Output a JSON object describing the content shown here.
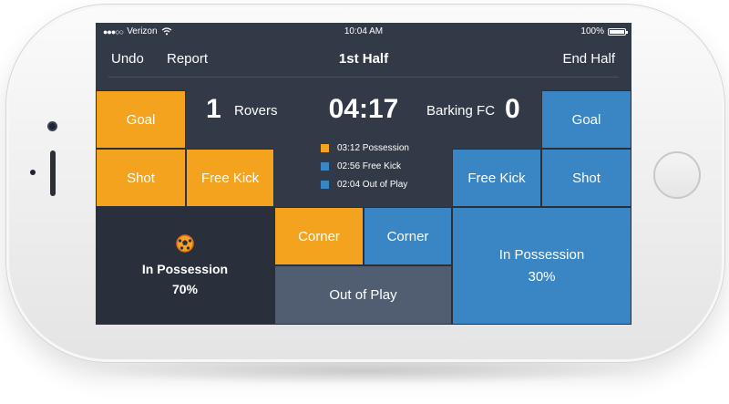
{
  "status_bar": {
    "carrier": "Verizon",
    "signal_dots": "●●●○○",
    "time": "10:04 AM",
    "battery": "100%"
  },
  "nav": {
    "undo": "Undo",
    "report": "Report",
    "title": "1st Half",
    "end_half": "End Half"
  },
  "match": {
    "clock": "04:17",
    "home": {
      "name": "Rovers",
      "score": "1"
    },
    "away": {
      "name": "Barking FC",
      "score": "0"
    }
  },
  "home_actions": {
    "goal": "Goal",
    "shot": "Shot",
    "free_kick": "Free Kick",
    "corner": "Corner",
    "possession_label": "In Possession",
    "possession_value": "70%"
  },
  "away_actions": {
    "goal": "Goal",
    "shot": "Shot",
    "free_kick": "Free Kick",
    "corner": "Corner",
    "possession_label": "In Possession",
    "possession_value": "30%"
  },
  "out_of_play": "Out of Play",
  "events": [
    {
      "text": "03:12 Possession",
      "team": "home"
    },
    {
      "text": "02:56 Free Kick",
      "team": "away"
    },
    {
      "text": "02:04 Out of Play",
      "team": "away"
    }
  ],
  "colors": {
    "home": "#f4a31f",
    "away": "#3a86c4",
    "neutral": "#515e72",
    "background": "#333a47"
  },
  "icons": {
    "ball": "soccer-ball-icon",
    "wifi": "wifi-icon",
    "battery": "battery-icon"
  }
}
